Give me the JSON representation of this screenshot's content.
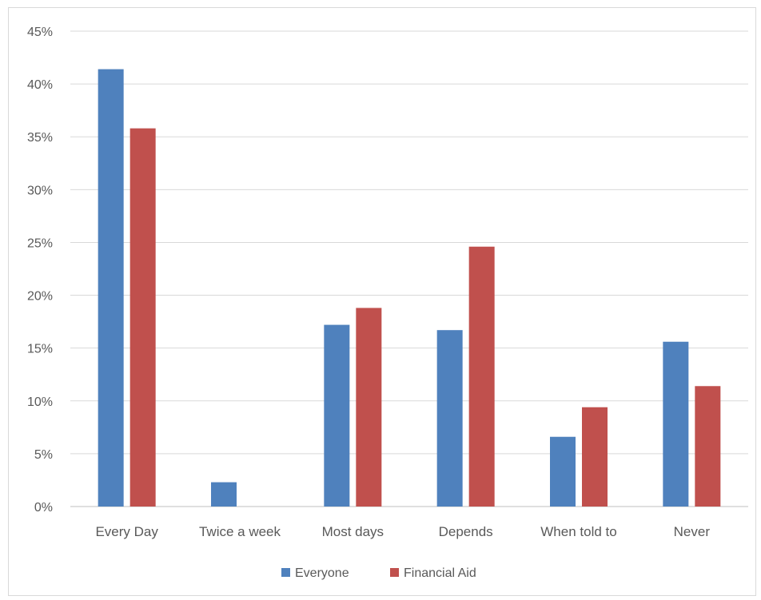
{
  "chart_data": {
    "type": "bar",
    "categories": [
      "Every Day",
      "Twice a week",
      "Most days",
      "Depends",
      "When told to",
      "Never"
    ],
    "series": [
      {
        "name": "Everyone",
        "color": "#4f81bd",
        "values": [
          41.4,
          2.3,
          17.2,
          16.7,
          6.6,
          15.6
        ]
      },
      {
        "name": "Financial Aid",
        "color": "#c0504d",
        "values": [
          35.8,
          0,
          18.8,
          24.6,
          9.4,
          11.4
        ]
      }
    ],
    "y_ticks": [
      "0%",
      "5%",
      "10%",
      "15%",
      "20%",
      "25%",
      "30%",
      "35%",
      "40%",
      "45%"
    ],
    "ylim": [
      0,
      45
    ],
    "grid": true,
    "legend_position": "bottom"
  }
}
